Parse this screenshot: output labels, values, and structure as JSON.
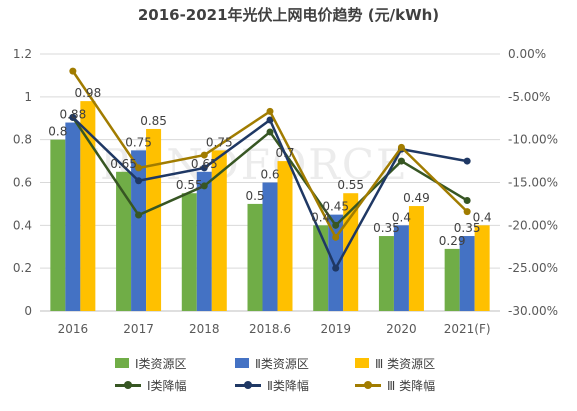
{
  "colors": {
    "bar1": "#70AD47",
    "bar2": "#4472C4",
    "bar3": "#FFC000",
    "line1": "#375623",
    "line2": "#1F3864",
    "line3": "#A17C00",
    "grid": "#D9D9D9",
    "axis": "#BFBFBF"
  },
  "watermark": "TRENDFORCE",
  "chart_data": {
    "type": "bar",
    "title": "2016-2021年光伏上网电价趋势 (元/kWh)",
    "categories": [
      "2016",
      "2017",
      "2018",
      "2018.6",
      "2019",
      "2020",
      "2021(F)"
    ],
    "y_ticks": [
      "0",
      "0.2",
      "0.4",
      "0.6",
      "0.8",
      "1",
      "1.2"
    ],
    "y2_ticks": [
      "0.00%",
      "-5.00%",
      "-10.00%",
      "-15.00%",
      "-20.00%",
      "-25.00%",
      "-30.00%"
    ],
    "ylim": [
      0,
      1.2
    ],
    "y2lim": [
      -30,
      0
    ],
    "series": [
      {
        "name": "Ⅰ类资源区",
        "values": [
          0.8,
          0.65,
          0.55,
          0.5,
          0.4,
          0.35,
          0.29
        ],
        "labels": [
          "0.8",
          "0.65",
          "0.55",
          "0.5",
          "0.4",
          "0.35",
          "0.29"
        ]
      },
      {
        "name": "Ⅱ类资源区",
        "values": [
          0.88,
          0.75,
          0.65,
          0.6,
          0.45,
          0.4,
          0.35
        ],
        "labels": [
          "0.88",
          "0.75",
          "0.65",
          "0.6",
          "0.45",
          "0.4",
          "0.35"
        ]
      },
      {
        "name": "Ⅲ 类资源区",
        "values": [
          0.98,
          0.85,
          0.75,
          0.7,
          0.55,
          0.49,
          0.4
        ],
        "labels": [
          "0.98",
          "0.85",
          "0.75",
          "0.7",
          "0.55",
          "0.49",
          "0.4"
        ]
      }
    ],
    "line_series": [
      {
        "name": "Ⅰ类降幅",
        "values": [
          -7.4,
          -18.8,
          -15.4,
          -9.1,
          -20.0,
          -12.5,
          -17.1
        ]
      },
      {
        "name": "Ⅱ类降幅",
        "values": [
          -7.4,
          -14.8,
          -13.3,
          -7.7,
          -25.0,
          -11.1,
          -12.5
        ]
      },
      {
        "name": "Ⅲ 类降幅",
        "values": [
          -2.0,
          -13.3,
          -11.8,
          -6.7,
          -21.4,
          -10.9,
          -18.4
        ]
      }
    ]
  }
}
